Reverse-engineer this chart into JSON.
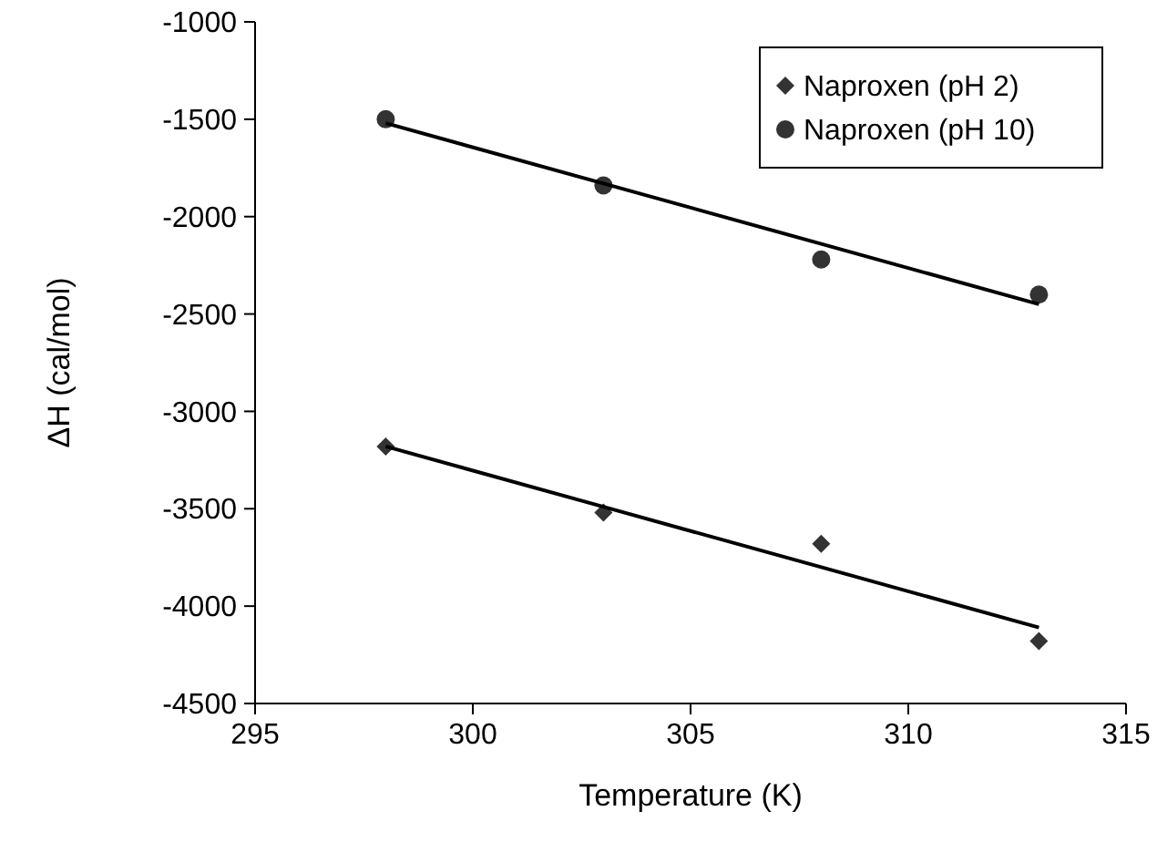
{
  "chart_data": {
    "type": "scatter",
    "xlabel": "Temperature (K)",
    "ylabel": "ΔH (cal/mol)",
    "x": [
      298,
      303,
      308,
      313
    ],
    "series": [
      {
        "name": "Naproxen (pH 2)",
        "color": "#333333",
        "marker": "diamond",
        "values": [
          -3180,
          -3520,
          -3680,
          -4180
        ]
      },
      {
        "name": "Naproxen (pH 10)",
        "color": "#333333",
        "marker": "circle",
        "values": [
          -1500,
          -1840,
          -2220,
          -2400
        ]
      },
      {
        "type": "line",
        "color": "#000000",
        "marker": "none",
        "x": [
          298,
          303,
          308,
          313
        ],
        "values": [
          -3180,
          -3490,
          -3800,
          -4110
        ]
      },
      {
        "type": "line",
        "color": "#000000",
        "marker": "none",
        "x": [
          298,
          303,
          308,
          313
        ],
        "values": [
          -1520,
          -1830,
          -2140,
          -2450
        ]
      }
    ],
    "xlim": [
      295,
      315
    ],
    "xticks": [
      295,
      300,
      305,
      310,
      315
    ],
    "ylim": [
      -4500,
      -1000
    ],
    "yticks": [
      -4500,
      -4000,
      -3500,
      -3000,
      -2500,
      -2000,
      -1500,
      -1000
    ],
    "grid": false,
    "legend": "top right"
  }
}
